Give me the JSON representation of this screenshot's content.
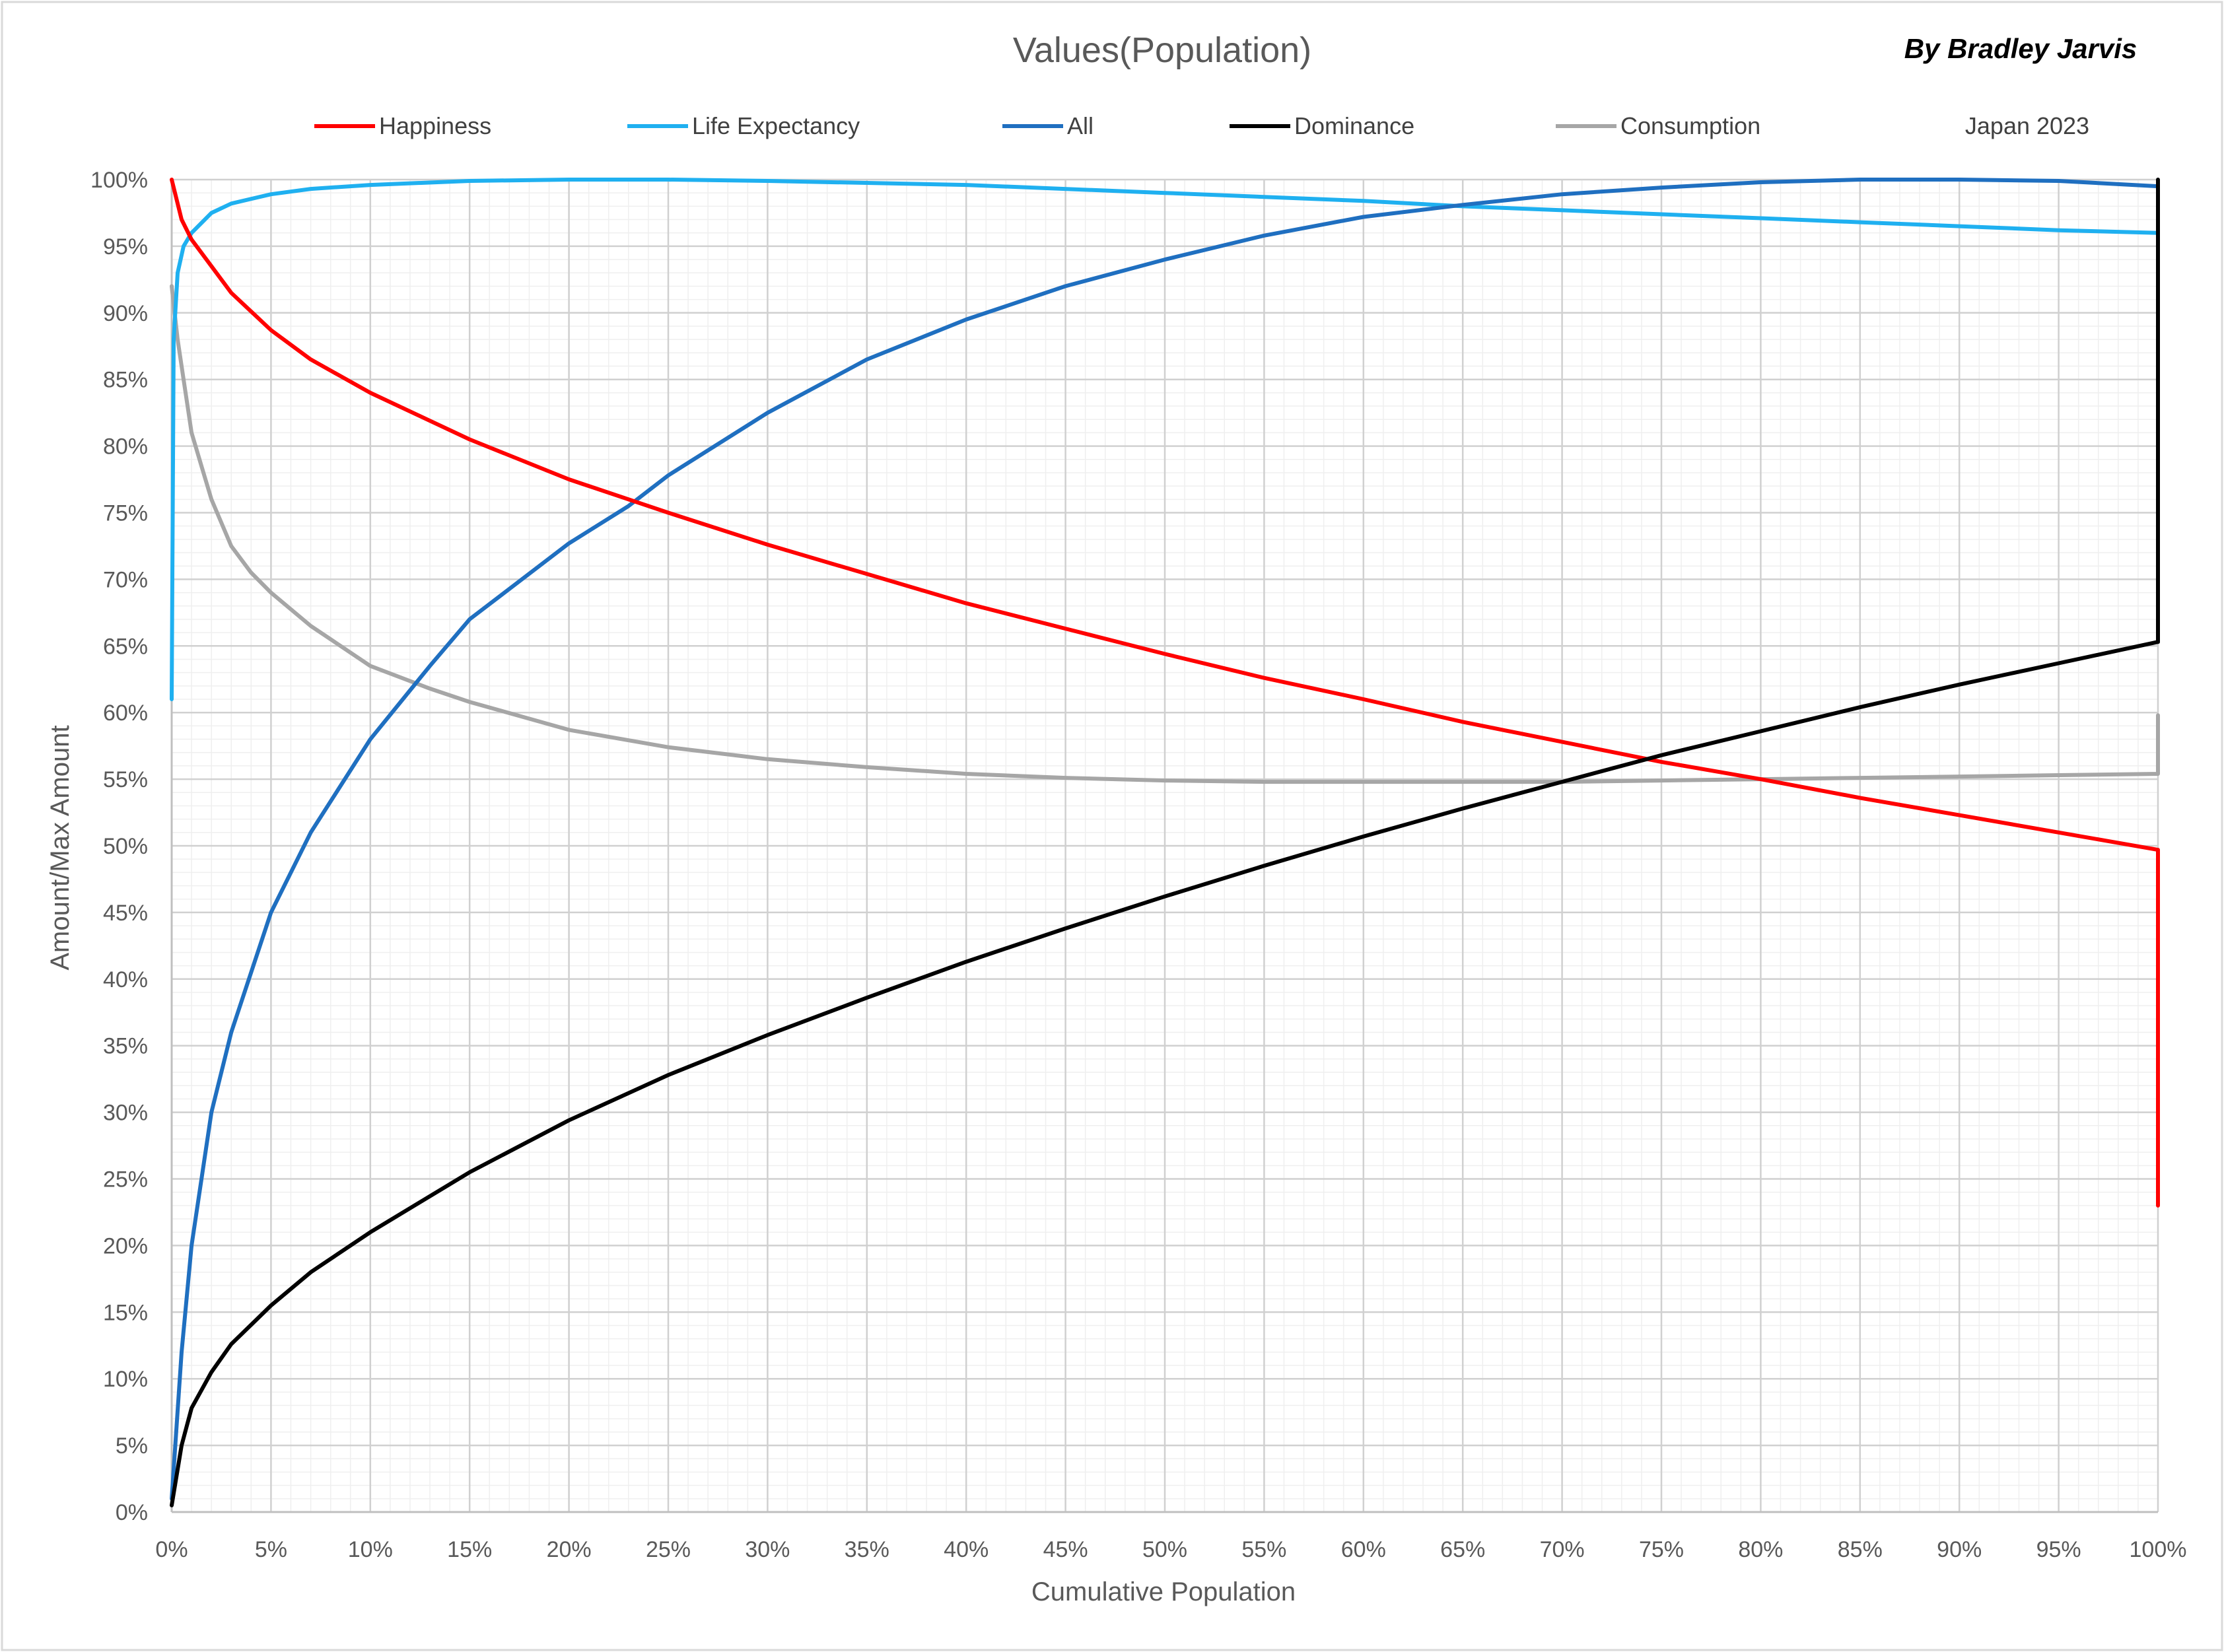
{
  "chart_data": {
    "type": "line",
    "title": "Values(Population)",
    "author": "By Bradley Jarvis",
    "annotation": "Japan 2023",
    "xlabel": "Cumulative Population",
    "ylabel": "Amount/Max Amount",
    "xlim": [
      0,
      100
    ],
    "ylim": [
      0,
      100
    ],
    "x_ticks": [
      0,
      5,
      10,
      15,
      20,
      25,
      30,
      35,
      40,
      45,
      50,
      55,
      60,
      65,
      70,
      75,
      80,
      85,
      90,
      95,
      100
    ],
    "x_tick_labels": [
      "0%",
      "5%",
      "10%",
      "15%",
      "20%",
      "25%",
      "30%",
      "35%",
      "40%",
      "45%",
      "50%",
      "55%",
      "60%",
      "65%",
      "70%",
      "75%",
      "80%",
      "85%",
      "90%",
      "95%",
      "100%"
    ],
    "y_ticks": [
      0,
      5,
      10,
      15,
      20,
      25,
      30,
      35,
      40,
      45,
      50,
      55,
      60,
      65,
      70,
      75,
      80,
      85,
      90,
      95,
      100
    ],
    "y_tick_labels": [
      "0%",
      "5%",
      "10%",
      "15%",
      "20%",
      "25%",
      "30%",
      "35%",
      "40%",
      "45%",
      "50%",
      "55%",
      "60%",
      "65%",
      "70%",
      "75%",
      "80%",
      "85%",
      "90%",
      "95%",
      "100%"
    ],
    "grid": true,
    "legend_position": "top",
    "series": [
      {
        "name": "Happiness",
        "color": "#ff0000",
        "x": [
          0,
          0.5,
          1,
          2,
          3,
          5,
          7,
          10,
          15,
          20,
          25,
          30,
          35,
          40,
          45,
          50,
          55,
          60,
          65,
          70,
          75,
          80,
          85,
          90,
          95,
          100,
          100
        ],
        "y": [
          100,
          97,
          95.5,
          93.5,
          91.5,
          88.7,
          86.5,
          84,
          80.5,
          77.5,
          75,
          72.6,
          70.4,
          68.2,
          66.3,
          64.4,
          62.6,
          61,
          59.3,
          57.8,
          56.3,
          55,
          53.6,
          52.3,
          51,
          49.7,
          23
        ]
      },
      {
        "name": "Life Expectancy",
        "color": "#1fb0f0",
        "x": [
          0,
          0.1,
          0.3,
          0.6,
          1,
          2,
          3,
          5,
          7,
          10,
          15,
          20,
          25,
          30,
          40,
          50,
          60,
          65,
          70,
          75,
          80,
          85,
          90,
          95,
          100
        ],
        "y": [
          61,
          88,
          93,
          95,
          96,
          97.5,
          98.2,
          98.9,
          99.3,
          99.6,
          99.9,
          100,
          100,
          99.9,
          99.6,
          99,
          98.4,
          98,
          97.7,
          97.4,
          97.1,
          96.8,
          96.5,
          96.2,
          96
        ]
      },
      {
        "name": "All",
        "color": "#1f6fc0",
        "x": [
          0,
          0.5,
          1,
          2,
          3,
          5,
          7,
          10,
          13,
          15,
          20,
          23,
          25,
          30,
          35,
          40,
          45,
          50,
          55,
          60,
          65,
          70,
          75,
          80,
          85,
          90,
          95,
          100
        ],
        "y": [
          1,
          12,
          20,
          30,
          36,
          45,
          51,
          58,
          63.5,
          67,
          72.7,
          75.5,
          77.8,
          82.5,
          86.5,
          89.5,
          92,
          94,
          95.8,
          97.2,
          98.1,
          98.9,
          99.4,
          99.8,
          100,
          100,
          99.9,
          99.5
        ]
      },
      {
        "name": "Dominance",
        "color": "#000000",
        "x": [
          0,
          0.5,
          1,
          2,
          3,
          5,
          7,
          10,
          15,
          20,
          25,
          30,
          35,
          40,
          45,
          50,
          55,
          60,
          65,
          70,
          75,
          80,
          85,
          90,
          95,
          100,
          100
        ],
        "y": [
          0.5,
          5,
          7.8,
          10.5,
          12.6,
          15.5,
          18,
          21,
          25.5,
          29.4,
          32.8,
          35.8,
          38.6,
          41.3,
          43.8,
          46.2,
          48.5,
          50.7,
          52.8,
          54.8,
          56.8,
          58.6,
          60.4,
          62.1,
          63.7,
          65.3,
          100
        ]
      },
      {
        "name": "Consumption",
        "color": "#a6a6a6",
        "x": [
          0,
          0.3,
          0.6,
          1,
          1.5,
          2,
          3,
          4,
          5,
          7,
          10,
          13,
          15,
          20,
          25,
          30,
          35,
          40,
          45,
          50,
          55,
          60,
          65,
          70,
          75,
          80,
          85,
          90,
          95,
          100,
          100
        ],
        "y": [
          92,
          88,
          85,
          81,
          78.5,
          76,
          72.5,
          70.5,
          69,
          66.5,
          63.5,
          61.8,
          60.8,
          58.7,
          57.4,
          56.5,
          55.9,
          55.4,
          55.1,
          54.9,
          54.8,
          54.8,
          54.8,
          54.8,
          54.9,
          55,
          55.1,
          55.2,
          55.3,
          55.4,
          59.8
        ]
      }
    ]
  }
}
